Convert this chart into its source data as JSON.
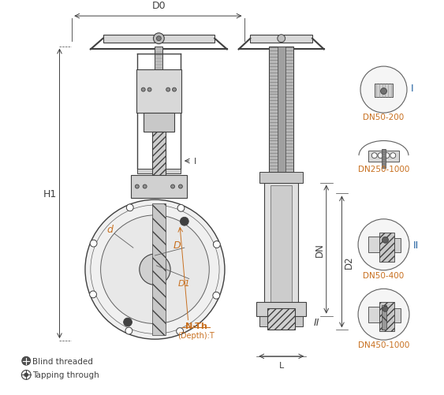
{
  "bg_color": "#ffffff",
  "line_color": "#404040",
  "orange_color": "#c87020",
  "blue_color": "#2060a0",
  "labels": {
    "D0": "D0",
    "H1": "H1",
    "D1": "D1",
    "D": "D",
    "d": "d",
    "DN": "DN",
    "D2": "D2",
    "L": "L",
    "I_label": "I",
    "II_label": "II",
    "N_Th": "N-Th",
    "depth_T": "(Depth):T",
    "blind": "Blind threaded",
    "tapping": "Tapping through",
    "DN50_200": "DN50-200",
    "DN250_1000": "DN250-1000",
    "DN50_400": "DN50-400",
    "DN450_1000": "DN450-1000"
  }
}
